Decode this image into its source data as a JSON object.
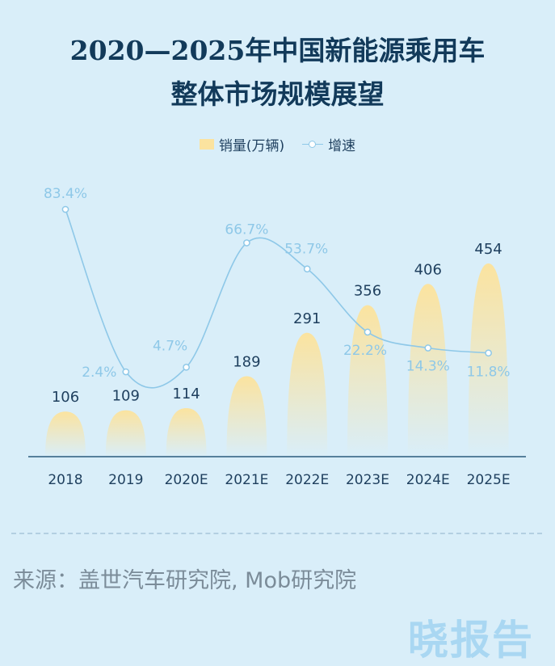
{
  "title_lines": [
    "2020—2025年中国新能源乘用车",
    "整体市场规模展望"
  ],
  "legend": {
    "bar_label": "销量(万辆)",
    "line_label": "增速"
  },
  "source_text": "来源：盖世汽车研究院, Mob研究院",
  "brand_text": "晓报告",
  "colors": {
    "background": "#d9eef9",
    "bar_top": "#fbe39f",
    "line": "#8ec8e8",
    "axis": "#2a5b7d"
  },
  "chart_data": {
    "type": "bar",
    "categories": [
      "2018",
      "2019",
      "2020E",
      "2021E",
      "2022E",
      "2023E",
      "2024E",
      "2025E"
    ],
    "series": [
      {
        "name": "销量(万辆)",
        "type": "bar",
        "values": [
          106,
          109,
          114,
          189,
          291,
          356,
          406,
          454
        ],
        "labels": [
          "106",
          "109",
          "114",
          "189",
          "291",
          "356",
          "406",
          "454"
        ]
      },
      {
        "name": "增速",
        "type": "line",
        "values": [
          83.4,
          2.4,
          4.7,
          66.7,
          53.7,
          22.2,
          14.3,
          11.8
        ],
        "labels": [
          "83.4%",
          "2.4%",
          "4.7%",
          "66.7%",
          "53.7%",
          "22.2%",
          "14.3%",
          "11.8%"
        ]
      }
    ],
    "title": "2020—2025年中国新能源乘用车整体市场规模展望",
    "legend_position": "top-center",
    "grid": false
  }
}
